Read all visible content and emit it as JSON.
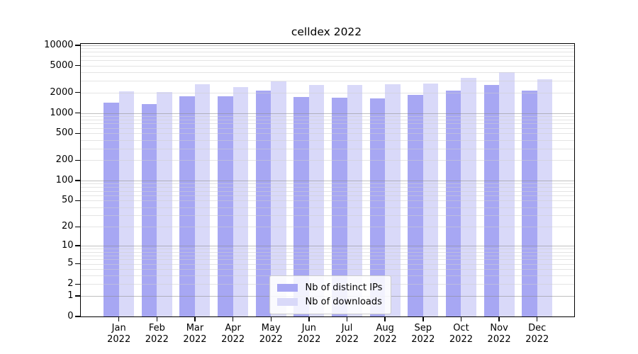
{
  "figure": {
    "title": "celldex 2022"
  },
  "chart_data": {
    "type": "bar",
    "title": "celldex 2022",
    "subtitle": "",
    "xlabel": "",
    "ylabel": "",
    "year": "2022",
    "categories": [
      "Jan",
      "Feb",
      "Mar",
      "Apr",
      "May",
      "Jun",
      "Jul",
      "Aug",
      "Sep",
      "Oct",
      "Nov",
      "Dec"
    ],
    "series": [
      {
        "name": "Nb of distinct IPs",
        "color": "#a7a7f3",
        "values": [
          1430,
          1360,
          1780,
          1780,
          2120,
          1730,
          1680,
          1650,
          1840,
          2120,
          2590,
          2150
        ]
      },
      {
        "name": "Nb of downloads",
        "color": "#d9d9f9",
        "values": [
          2100,
          2020,
          2650,
          2430,
          2920,
          2580,
          2570,
          2670,
          2730,
          3320,
          4020,
          3140
        ]
      }
    ],
    "y_axis": {
      "scale": "log10(value+1)",
      "ticks": [
        10000,
        5000,
        2000,
        1000,
        500,
        200,
        100,
        50,
        20,
        10,
        5,
        2,
        1,
        0
      ],
      "tick_labels": [
        "10000",
        "5000",
        "2000",
        "1000",
        "500",
        "200",
        "100",
        "50",
        "20",
        "10",
        "5",
        "2",
        "1",
        "0"
      ],
      "ylim": [
        0,
        10000
      ],
      "major_gridline_values": [
        1,
        10,
        100,
        1000,
        10000
      ],
      "minor_gridline_pattern": "2-9 per decade",
      "grid": true
    },
    "legend": {
      "position": "bottom-center-inside",
      "entries": [
        "Nb of distinct IPs",
        "Nb of downloads"
      ]
    },
    "colors": {
      "bar_distinct_ips": "#a7a7f3",
      "bar_downloads": "#d9d9f9",
      "major_grid": "#bdbdbd",
      "minor_grid": "#e5e5e5",
      "axis": "#000000",
      "background": "#ffffff"
    }
  }
}
